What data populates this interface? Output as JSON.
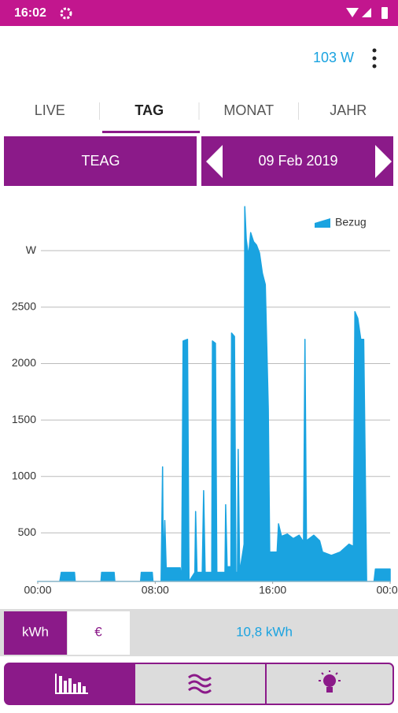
{
  "status_bar": {
    "time": "16:02"
  },
  "header": {
    "power": "103 W"
  },
  "tabs": [
    "LIVE",
    "TAG",
    "MONAT",
    "JAHR"
  ],
  "selector": {
    "meter": "TEAG",
    "date": "09 Feb 2019"
  },
  "chart_data": {
    "type": "area",
    "x": [
      0,
      1.5,
      1.6,
      2.5,
      2.55,
      4.3,
      4.35,
      5.2,
      5.25,
      7.0,
      7.05,
      7.8,
      7.85,
      8.4,
      8.5,
      8.55,
      8.65,
      8.75,
      9.7,
      9.8,
      9.9,
      10.2,
      10.3,
      10.7,
      10.75,
      10.85,
      11.2,
      11.3,
      11.4,
      11.85,
      11.9,
      12.1,
      12.2,
      12.75,
      12.8,
      12.9,
      13.15,
      13.2,
      13.4,
      13.5,
      13.6,
      13.65,
      13.75,
      14.05,
      14.1,
      14.2,
      14.35,
      14.5,
      14.7,
      14.9,
      15.1,
      15.3,
      15.5,
      15.7,
      15.8,
      16.3,
      16.4,
      16.6,
      17.0,
      17.4,
      17.8,
      18.1,
      18.2,
      18.3,
      18.8,
      19.2,
      19.4,
      20.0,
      20.6,
      21.2,
      21.5,
      21.6,
      21.8,
      22.0,
      22.2,
      22.4,
      22.9,
      23.0,
      24
    ],
    "series": [
      {
        "name": "Bezug",
        "color": "#1aa3e0",
        "values": [
          70,
          70,
          150,
          150,
          70,
          70,
          150,
          150,
          70,
          70,
          150,
          150,
          70,
          70,
          1085,
          190,
          610,
          190,
          190,
          70,
          2200,
          2215,
          70,
          150,
          690,
          150,
          150,
          875,
          150,
          150,
          2200,
          2180,
          150,
          150,
          750,
          200,
          200,
          2270,
          2240,
          150,
          150,
          1240,
          150,
          400,
          3390,
          3100,
          2950,
          3160,
          3080,
          3050,
          2980,
          2800,
          2700,
          1600,
          330,
          330,
          580,
          470,
          490,
          450,
          480,
          420,
          2215,
          430,
          480,
          430,
          330,
          300,
          330,
          400,
          380,
          2460,
          2400,
          2215,
          2215,
          70,
          70,
          180,
          180
        ]
      }
    ],
    "xlim": [
      0,
      24
    ],
    "xticks": [
      {
        "value": 0,
        "label": "00:00"
      },
      {
        "value": 8,
        "label": "08:00"
      },
      {
        "value": 16,
        "label": "16:00"
      },
      {
        "value": 24,
        "label": "00:00"
      }
    ],
    "ylim": [
      70,
      3420
    ],
    "yticks": [
      500,
      1000,
      1500,
      2000,
      2500,
      {
        "value": 3000,
        "label": "W"
      }
    ],
    "grid": true,
    "legend": "top-right"
  },
  "summary": {
    "units": [
      "kWh",
      "€"
    ],
    "total": "10,8 kWh"
  }
}
